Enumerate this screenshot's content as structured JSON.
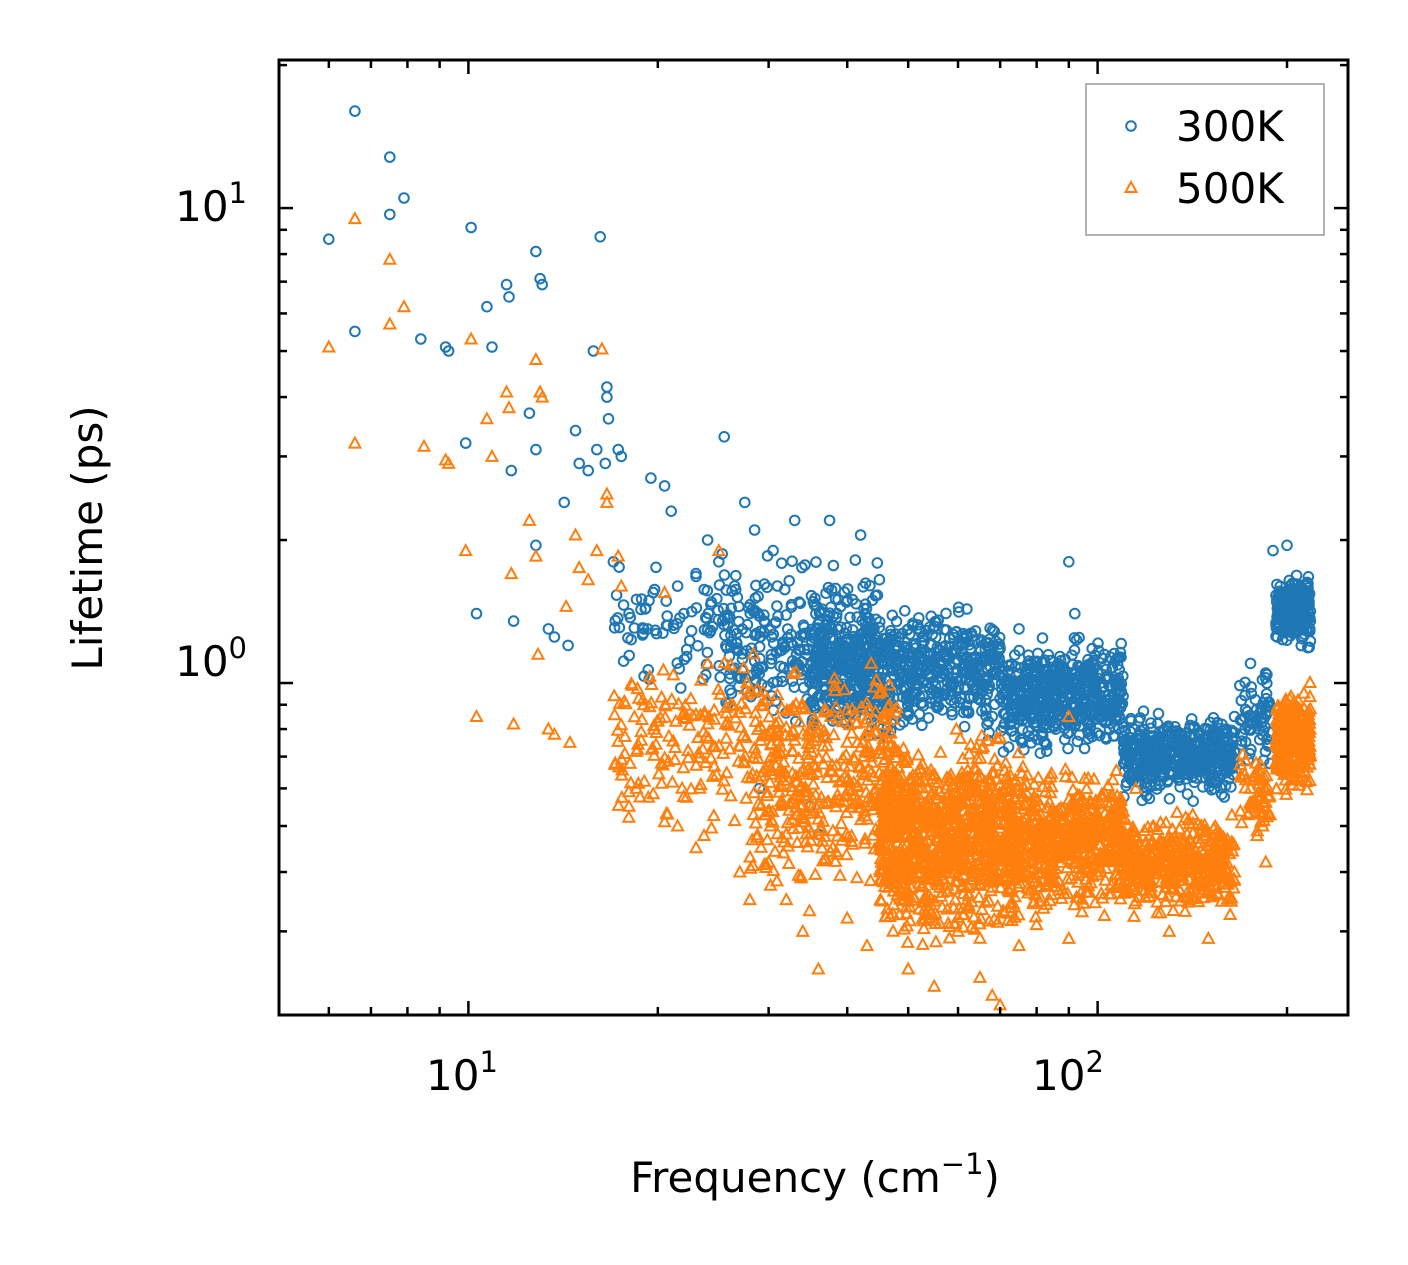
{
  "chart_data": {
    "type": "scatter",
    "xscale": "log",
    "yscale": "log",
    "xlabel": "Frequency (cm",
    "xlabel_sup": "−1",
    "xlabel_end": ")",
    "ylabel": "Lifetime (ps)",
    "xlim": [
      5.0,
      250.0
    ],
    "ylim": [
      0.2,
      20.5
    ],
    "x_ticks": [
      {
        "value": 10,
        "base": "10",
        "exp": "1"
      },
      {
        "value": 100,
        "base": "10",
        "exp": "2"
      }
    ],
    "y_ticks": [
      {
        "value": 1,
        "base": "10",
        "exp": "0"
      },
      {
        "value": 10,
        "base": "10",
        "exp": "1"
      }
    ],
    "legend_position": "top-right",
    "series": [
      {
        "name": "300K",
        "marker": "circle",
        "color": "#1f77b4",
        "points": [
          [
            6.0,
            8.6
          ],
          [
            6.6,
            16.0
          ],
          [
            6.6,
            5.5
          ],
          [
            7.5,
            12.8
          ],
          [
            7.5,
            9.7
          ],
          [
            7.9,
            10.5
          ],
          [
            8.4,
            5.3
          ],
          [
            9.2,
            5.1
          ],
          [
            9.3,
            5.0
          ],
          [
            9.9,
            3.2
          ],
          [
            10.1,
            9.1
          ],
          [
            10.3,
            1.4
          ],
          [
            10.7,
            6.2
          ],
          [
            10.9,
            5.1
          ],
          [
            11.5,
            6.9
          ],
          [
            11.6,
            6.5
          ],
          [
            11.7,
            2.8
          ],
          [
            11.8,
            1.35
          ],
          [
            12.5,
            3.7
          ],
          [
            12.8,
            3.1
          ],
          [
            12.8,
            8.1
          ],
          [
            12.8,
            1.95
          ],
          [
            13.0,
            7.1
          ],
          [
            13.1,
            6.9
          ],
          [
            13.4,
            1.3
          ],
          [
            13.7,
            1.25
          ],
          [
            14.2,
            2.4
          ],
          [
            14.4,
            1.2
          ],
          [
            14.8,
            3.4
          ],
          [
            15.0,
            2.9
          ],
          [
            15.5,
            2.8
          ],
          [
            15.8,
            5.0
          ],
          [
            16.0,
            3.1
          ],
          [
            16.2,
            8.7
          ],
          [
            16.5,
            2.9
          ],
          [
            16.6,
            4.2
          ],
          [
            16.6,
            4.0
          ],
          [
            16.7,
            3.6
          ],
          [
            17.3,
            3.1
          ],
          [
            17.5,
            3.0
          ],
          [
            17.0,
            1.8
          ],
          [
            18.0,
            1.4
          ],
          [
            18.5,
            1.5
          ],
          [
            19.0,
            1.3
          ],
          [
            19.5,
            2.7
          ],
          [
            20.5,
            2.6
          ],
          [
            21.0,
            2.3
          ],
          [
            21.5,
            1.6
          ],
          [
            22.0,
            1.4
          ],
          [
            23.0,
            1.7
          ],
          [
            24.0,
            2.0
          ],
          [
            25.0,
            1.8
          ],
          [
            25.5,
            3.3
          ],
          [
            26.5,
            1.6
          ],
          [
            27.5,
            2.4
          ],
          [
            28.5,
            2.1
          ],
          [
            29.0,
            0.6
          ],
          [
            30.5,
            1.9
          ],
          [
            33.0,
            2.2
          ],
          [
            35.0,
            0.55
          ],
          [
            36.0,
            0.48
          ],
          [
            37.5,
            2.2
          ],
          [
            38.5,
            1.4
          ],
          [
            42.0,
            2.05
          ],
          [
            45.0,
            1.65
          ],
          [
            48.0,
            1.2
          ],
          [
            55.0,
            1.1
          ],
          [
            62.0,
            1.05
          ],
          [
            68.0,
            0.85
          ],
          [
            75.0,
            1.3
          ],
          [
            90.0,
            1.8
          ],
          [
            92.0,
            1.4
          ],
          [
            100.0,
            1.05
          ],
          [
            110.0,
            0.75
          ],
          [
            130.0,
            0.65
          ],
          [
            150.0,
            0.75
          ],
          [
            165.0,
            0.85
          ],
          [
            175.0,
            1.1
          ],
          [
            185.0,
            1.05
          ],
          [
            190.0,
            1.9
          ],
          [
            200.0,
            1.95
          ],
          [
            205.0,
            1.45
          ],
          [
            215.0,
            1.5
          ]
        ],
        "cloud": [
          {
            "x": [
              17,
              25
            ],
            "y": [
              0.9,
              2.0
            ],
            "n": 70
          },
          {
            "x": [
              25,
              45
            ],
            "y": [
              0.75,
              2.0
            ],
            "n": 320
          },
          {
            "x": [
              35,
              70
            ],
            "y": [
              0.72,
              1.55
            ],
            "n": 700
          },
          {
            "x": [
              70,
              110
            ],
            "y": [
              0.68,
              1.3
            ],
            "n": 560
          },
          {
            "x": [
              110,
              165
            ],
            "y": [
              0.55,
              0.9
            ],
            "n": 480
          },
          {
            "x": [
              168,
              188
            ],
            "y": [
              0.62,
              1.15
            ],
            "n": 70
          },
          {
            "x": [
              192,
              218
            ],
            "y": [
              1.15,
              1.75
            ],
            "n": 260
          }
        ]
      },
      {
        "name": "500K",
        "marker": "triangle",
        "color": "#ff7f0e",
        "points": [
          [
            6.0,
            5.1
          ],
          [
            6.6,
            9.5
          ],
          [
            6.6,
            3.2
          ],
          [
            7.5,
            7.8
          ],
          [
            7.5,
            5.7
          ],
          [
            7.9,
            6.2
          ],
          [
            8.5,
            3.15
          ],
          [
            9.2,
            2.95
          ],
          [
            9.3,
            2.9
          ],
          [
            9.9,
            1.9
          ],
          [
            10.1,
            5.3
          ],
          [
            10.3,
            0.85
          ],
          [
            10.7,
            3.6
          ],
          [
            10.9,
            3.0
          ],
          [
            11.5,
            4.1
          ],
          [
            11.6,
            3.8
          ],
          [
            11.7,
            1.7
          ],
          [
            11.8,
            0.82
          ],
          [
            12.5,
            2.2
          ],
          [
            12.8,
            1.85
          ],
          [
            12.8,
            4.8
          ],
          [
            12.9,
            1.15
          ],
          [
            13.0,
            4.1
          ],
          [
            13.1,
            4.0
          ],
          [
            13.4,
            0.8
          ],
          [
            13.7,
            0.78
          ],
          [
            14.3,
            1.45
          ],
          [
            14.5,
            0.75
          ],
          [
            14.8,
            2.05
          ],
          [
            15.0,
            1.75
          ],
          [
            15.5,
            1.65
          ],
          [
            16.0,
            1.9
          ],
          [
            16.3,
            5.05
          ],
          [
            16.6,
            2.5
          ],
          [
            16.6,
            2.4
          ],
          [
            17.3,
            1.85
          ],
          [
            17.5,
            1.6
          ],
          [
            18.0,
            0.55
          ],
          [
            18.5,
            0.6
          ],
          [
            19.0,
            0.9
          ],
          [
            20.5,
            1.55
          ],
          [
            21.5,
            0.5
          ],
          [
            23.0,
            0.45
          ],
          [
            24.0,
            1.1
          ],
          [
            25.0,
            1.9
          ],
          [
            27.0,
            0.4
          ],
          [
            28.0,
            0.35
          ],
          [
            30.0,
            0.42
          ],
          [
            32.0,
            0.35
          ],
          [
            34.0,
            0.3
          ],
          [
            36.0,
            0.25
          ],
          [
            40.0,
            0.32
          ],
          [
            43.0,
            0.28
          ],
          [
            50.0,
            0.25
          ],
          [
            55.0,
            0.23
          ],
          [
            60.0,
            0.3
          ],
          [
            65.0,
            0.24
          ],
          [
            68.0,
            0.22
          ],
          [
            70.0,
            0.21
          ],
          [
            75.0,
            0.28
          ],
          [
            80.0,
            0.31
          ],
          [
            90.0,
            0.29
          ],
          [
            90.0,
            0.85
          ],
          [
            100.0,
            0.4
          ],
          [
            115.0,
            0.6
          ],
          [
            130.0,
            0.3
          ],
          [
            150.0,
            0.29
          ],
          [
            165.0,
            0.4
          ],
          [
            175.0,
            0.6
          ],
          [
            183.0,
            0.5
          ],
          [
            185.0,
            0.42
          ]
        ],
        "cloud": [
          {
            "x": [
              17,
              28
            ],
            "y": [
              0.45,
              1.3
            ],
            "n": 160
          },
          {
            "x": [
              28,
              48
            ],
            "y": [
              0.32,
              1.25
            ],
            "n": 420
          },
          {
            "x": [
              45,
              75
            ],
            "y": [
              0.26,
              0.85
            ],
            "n": 1000
          },
          {
            "x": [
              75,
              110
            ],
            "y": [
              0.3,
              0.72
            ],
            "n": 520
          },
          {
            "x": [
              110,
              165
            ],
            "y": [
              0.31,
              0.56
            ],
            "n": 420
          },
          {
            "x": [
              168,
              188
            ],
            "y": [
              0.45,
              0.75
            ],
            "n": 60
          },
          {
            "x": [
              192,
              218
            ],
            "y": [
              0.55,
              1.05
            ],
            "n": 260
          }
        ]
      }
    ]
  }
}
